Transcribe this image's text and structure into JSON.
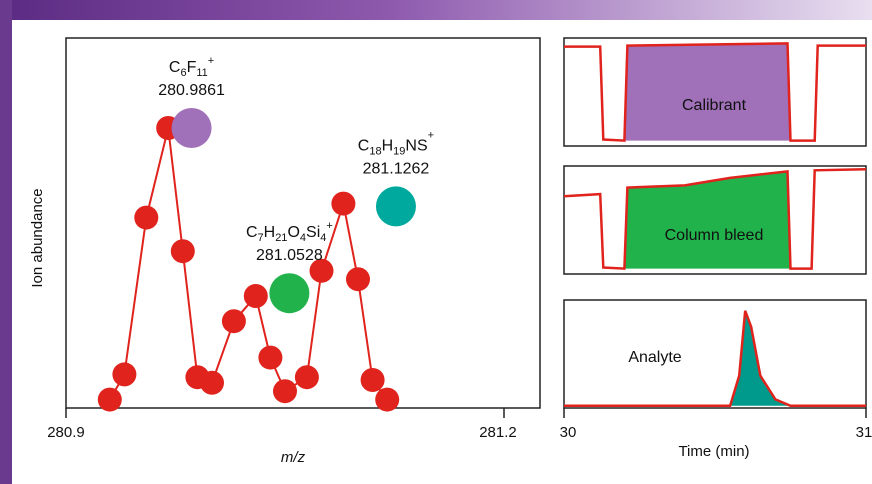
{
  "colors": {
    "trace": "#e0231c",
    "point": "#e0231c",
    "calibrant": "#a070b8",
    "column_bleed": "#22b24c",
    "analyte": "#009a8c",
    "teal_point": "#00a99d",
    "purple_point": "#a070b8",
    "green_point": "#22b24c"
  },
  "chart_data": [
    {
      "type": "scatter",
      "xlabel": "m/z",
      "ylabel": "Ion abundance",
      "x_tick_labels": [
        "280.9",
        "281.2"
      ],
      "xlim": [
        280.9,
        281.2
      ],
      "series": [
        {
          "values_xy": [
            [
              280.93,
              0.03
            ],
            [
              280.94,
              0.12
            ],
            [
              280.955,
              0.68
            ],
            [
              280.97,
              1.0
            ],
            [
              280.98,
              0.56
            ],
            [
              280.99,
              0.11
            ],
            [
              281.0,
              0.09
            ],
            [
              281.015,
              0.31
            ],
            [
              281.03,
              0.4
            ],
            [
              281.04,
              0.18
            ],
            [
              281.05,
              0.06
            ],
            [
              281.065,
              0.11
            ],
            [
              281.075,
              0.49
            ],
            [
              281.09,
              0.73
            ],
            [
              281.1,
              0.46
            ],
            [
              281.11,
              0.1
            ],
            [
              281.12,
              0.03
            ]
          ]
        }
      ],
      "highlighted_peaks": [
        {
          "label_main": "C",
          "formula_parts": [
            [
              "C",
              ""
            ],
            [
              "6",
              "sub"
            ],
            [
              "F",
              ""
            ],
            [
              "11",
              "sub"
            ],
            [
              "+",
              "sup"
            ]
          ],
          "mass": "280.9861",
          "x": 280.986,
          "y": 1.0,
          "color_key": "purple_point"
        },
        {
          "formula_parts": [
            [
              "C",
              ""
            ],
            [
              "7",
              "sub"
            ],
            [
              "H",
              ""
            ],
            [
              "21",
              "sub"
            ],
            [
              "O",
              ""
            ],
            [
              "4",
              "sub"
            ],
            [
              "Si",
              ""
            ],
            [
              "4",
              "sub"
            ],
            [
              "+",
              "sup"
            ]
          ],
          "mass": "281.0528",
          "x": 281.053,
          "y": 0.41,
          "color_key": "green_point"
        },
        {
          "formula_parts": [
            [
              "C",
              ""
            ],
            [
              "18",
              "sub"
            ],
            [
              "H",
              ""
            ],
            [
              "19",
              "sub"
            ],
            [
              "NS",
              ""
            ],
            [
              "+",
              "sup"
            ]
          ],
          "mass": "281.1262",
          "x": 281.126,
          "y": 0.72,
          "color_key": "teal_point"
        }
      ]
    },
    {
      "type": "line",
      "title_inside": "Calibrant",
      "fill_color_key": "calibrant",
      "trace": [
        [
          30.0,
          0.92
        ],
        [
          30.12,
          0.92
        ],
        [
          30.13,
          0.06
        ],
        [
          30.2,
          0.05
        ],
        [
          30.21,
          0.93
        ],
        [
          30.74,
          0.95
        ],
        [
          30.75,
          0.05
        ],
        [
          30.83,
          0.05
        ],
        [
          30.84,
          0.93
        ],
        [
          31.0,
          0.93
        ]
      ]
    },
    {
      "type": "line",
      "title_inside": "Column bleed",
      "fill_color_key": "column_bleed",
      "trace": [
        [
          30.0,
          0.72
        ],
        [
          30.12,
          0.74
        ],
        [
          30.13,
          0.06
        ],
        [
          30.2,
          0.05
        ],
        [
          30.21,
          0.8
        ],
        [
          30.4,
          0.82
        ],
        [
          30.55,
          0.89
        ],
        [
          30.74,
          0.95
        ],
        [
          30.75,
          0.05
        ],
        [
          30.82,
          0.05
        ],
        [
          30.83,
          0.96
        ],
        [
          31.0,
          0.97
        ]
      ]
    },
    {
      "type": "line",
      "title_inside": "Analyte",
      "fill_color_key": "analyte",
      "xlabel": "Time (min)",
      "x_tick_labels": [
        "30",
        "31"
      ],
      "xlim": [
        30,
        31
      ],
      "trace": [
        [
          30.0,
          0.02
        ],
        [
          30.55,
          0.02
        ],
        [
          30.58,
          0.3
        ],
        [
          30.6,
          0.9
        ],
        [
          30.62,
          0.75
        ],
        [
          30.65,
          0.3
        ],
        [
          30.7,
          0.08
        ],
        [
          30.75,
          0.02
        ],
        [
          31.0,
          0.02
        ]
      ]
    }
  ]
}
